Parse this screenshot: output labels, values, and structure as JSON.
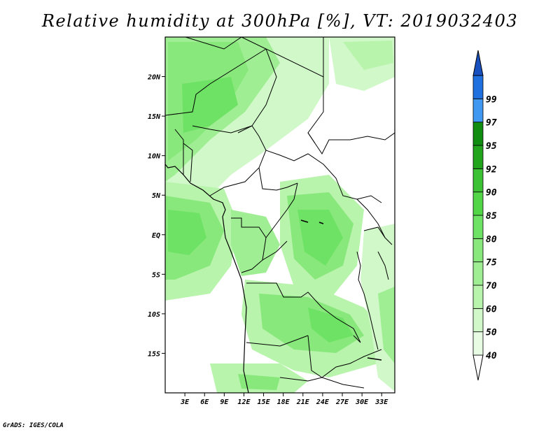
{
  "title": "Relative humidity at 300hPa [%], VT: 2019032403",
  "credit": "GrADS: IGES/COLA",
  "map": {
    "lon_range": [
      0,
      35
    ],
    "lat_range": [
      -20,
      25
    ],
    "lat_ticks": [
      {
        "value": 20,
        "label": "20N"
      },
      {
        "value": 15,
        "label": "15N"
      },
      {
        "value": 10,
        "label": "10N"
      },
      {
        "value": 5,
        "label": "5N"
      },
      {
        "value": 0,
        "label": "EQ"
      },
      {
        "value": -5,
        "label": "5S"
      },
      {
        "value": -10,
        "label": "10S"
      },
      {
        "value": -15,
        "label": "15S"
      }
    ],
    "lon_ticks": [
      {
        "value": 3,
        "label": "3E"
      },
      {
        "value": 6,
        "label": "6E"
      },
      {
        "value": 9,
        "label": "9E"
      },
      {
        "value": 12,
        "label": "12E"
      },
      {
        "value": 15,
        "label": "15E"
      },
      {
        "value": 18,
        "label": "18E"
      },
      {
        "value": 21,
        "label": "21E"
      },
      {
        "value": 24,
        "label": "24E"
      },
      {
        "value": 27,
        "label": "27E"
      },
      {
        "value": 30,
        "label": "30E"
      },
      {
        "value": 33,
        "label": "33E"
      }
    ]
  },
  "colorbar": {
    "levels": [
      {
        "label": "40",
        "color": "#e8fce4"
      },
      {
        "label": "50",
        "color": "#d0f8c8"
      },
      {
        "label": "60",
        "color": "#b8f4ac"
      },
      {
        "label": "70",
        "color": "#a0ee94"
      },
      {
        "label": "75",
        "color": "#88e87c"
      },
      {
        "label": "80",
        "color": "#6ee264"
      },
      {
        "label": "85",
        "color": "#52d648"
      },
      {
        "label": "90",
        "color": "#3cc034"
      },
      {
        "label": "92",
        "color": "#22a41c"
      },
      {
        "label": "95",
        "color": "#108c10"
      },
      {
        "label": "97",
        "color": "#4098f0"
      },
      {
        "label": "99",
        "color": "#2070e0"
      }
    ],
    "over_color": "#1850c0",
    "under_color": "#ffffff"
  }
}
